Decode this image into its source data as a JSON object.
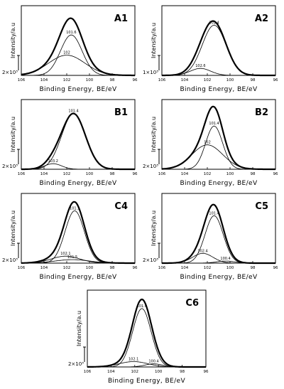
{
  "figure": {
    "xlabel": "Binding Energy, BE/eV",
    "ylabel": "Intensity/a.u"
  },
  "chart_data": [
    {
      "type": "line",
      "panel_label": "A1",
      "xlabel": "Binding Energy, BE/eV",
      "ylabel": "Intensity/a.u",
      "xlim": [
        106,
        96
      ],
      "x_ticks": [
        106,
        104,
        102,
        100,
        98,
        96
      ],
      "scale_bar": "2×10³",
      "peaks": [
        {
          "label": "101.6",
          "center": 101.6,
          "height": 0.58,
          "width": 0.95
        },
        {
          "label": "102",
          "center": 102.0,
          "height": 0.29,
          "width": 1.6
        }
      ],
      "envelope_height": 0.82
    },
    {
      "type": "line",
      "panel_label": "A2",
      "xlabel": "Binding Energy, BE/eV",
      "ylabel": "Intensity/a.u",
      "xlim": [
        106,
        96
      ],
      "x_ticks": [
        106,
        104,
        102,
        100,
        98,
        96
      ],
      "scale_bar": "1×10³",
      "peaks": [
        {
          "label": "101.4",
          "center": 101.4,
          "height": 0.72,
          "width": 1.05
        },
        {
          "label": "102.6",
          "center": 102.6,
          "height": 0.1,
          "width": 0.9
        }
      ],
      "envelope_height": 0.78
    },
    {
      "type": "line",
      "panel_label": "B1",
      "xlabel": "Binding Energy, BE/eV",
      "ylabel": "Intensity/a.u",
      "xlim": [
        106,
        96
      ],
      "x_ticks": [
        106,
        104,
        102,
        100,
        98,
        96
      ],
      "scale_bar": "2×10³",
      "peaks": [
        {
          "label": "101.4",
          "center": 101.4,
          "height": 0.8,
          "width": 1.05
        },
        {
          "label": "103.2",
          "center": 103.2,
          "height": 0.08,
          "width": 0.75
        }
      ],
      "envelope_height": 0.8
    },
    {
      "type": "line",
      "panel_label": "B2",
      "xlabel": "Binding Energy, BE/eV",
      "ylabel": "Intensity/a.u",
      "xlim": [
        106,
        96
      ],
      "x_ticks": [
        106,
        104,
        102,
        100,
        98,
        96
      ],
      "scale_bar": "2×10³",
      "peaks": [
        {
          "label": "101.4",
          "center": 101.4,
          "height": 0.62,
          "width": 0.75
        },
        {
          "label": "102",
          "center": 102.0,
          "height": 0.35,
          "width": 1.35
        }
      ],
      "envelope_height": 0.9
    },
    {
      "type": "line",
      "panel_label": "C4",
      "xlabel": "Binding Energy, BE/eV",
      "ylabel": "Intensity/a.u",
      "xlim": [
        106,
        96
      ],
      "x_ticks": [
        106,
        104,
        102,
        100,
        98,
        96
      ],
      "scale_bar": "2×10³",
      "peaks": [
        {
          "label": "101.3",
          "center": 101.3,
          "height": 0.75,
          "width": 0.85
        },
        {
          "label": "102.1",
          "center": 102.1,
          "height": 0.1,
          "width": 1.25
        },
        {
          "label": "101.5",
          "center": 101.5,
          "height": 0.05,
          "width": 1.5
        }
      ],
      "envelope_height": 0.88
    },
    {
      "type": "line",
      "panel_label": "C5",
      "xlabel": "Binding Energy, BE/eV",
      "ylabel": "Intensity/a.u",
      "xlim": [
        106,
        96
      ],
      "x_ticks": [
        106,
        104,
        102,
        100,
        98,
        96
      ],
      "scale_bar": "2×10³",
      "peaks": [
        {
          "label": "101.4",
          "center": 101.4,
          "height": 0.68,
          "width": 0.8
        },
        {
          "label": "102.4",
          "center": 102.4,
          "height": 0.14,
          "width": 0.9
        },
        {
          "label": "100.4",
          "center": 100.4,
          "height": 0.03,
          "width": 0.8
        }
      ],
      "envelope_height": 0.84
    },
    {
      "type": "line",
      "panel_label": "C6",
      "xlabel": "Binding Energy, BE/eV",
      "ylabel": "Intensity/a.u",
      "xlim": [
        106,
        96
      ],
      "x_ticks": [
        106,
        104,
        102,
        100,
        98,
        96
      ],
      "scale_bar": "2×10³",
      "peaks": [
        {
          "label": "101.4",
          "center": 101.4,
          "height": 0.76,
          "width": 0.78
        },
        {
          "label": "102.1",
          "center": 102.1,
          "height": 0.07,
          "width": 1.2
        },
        {
          "label": "100.4",
          "center": 100.4,
          "height": 0.04,
          "width": 0.75
        }
      ],
      "envelope_height": 0.88
    }
  ]
}
